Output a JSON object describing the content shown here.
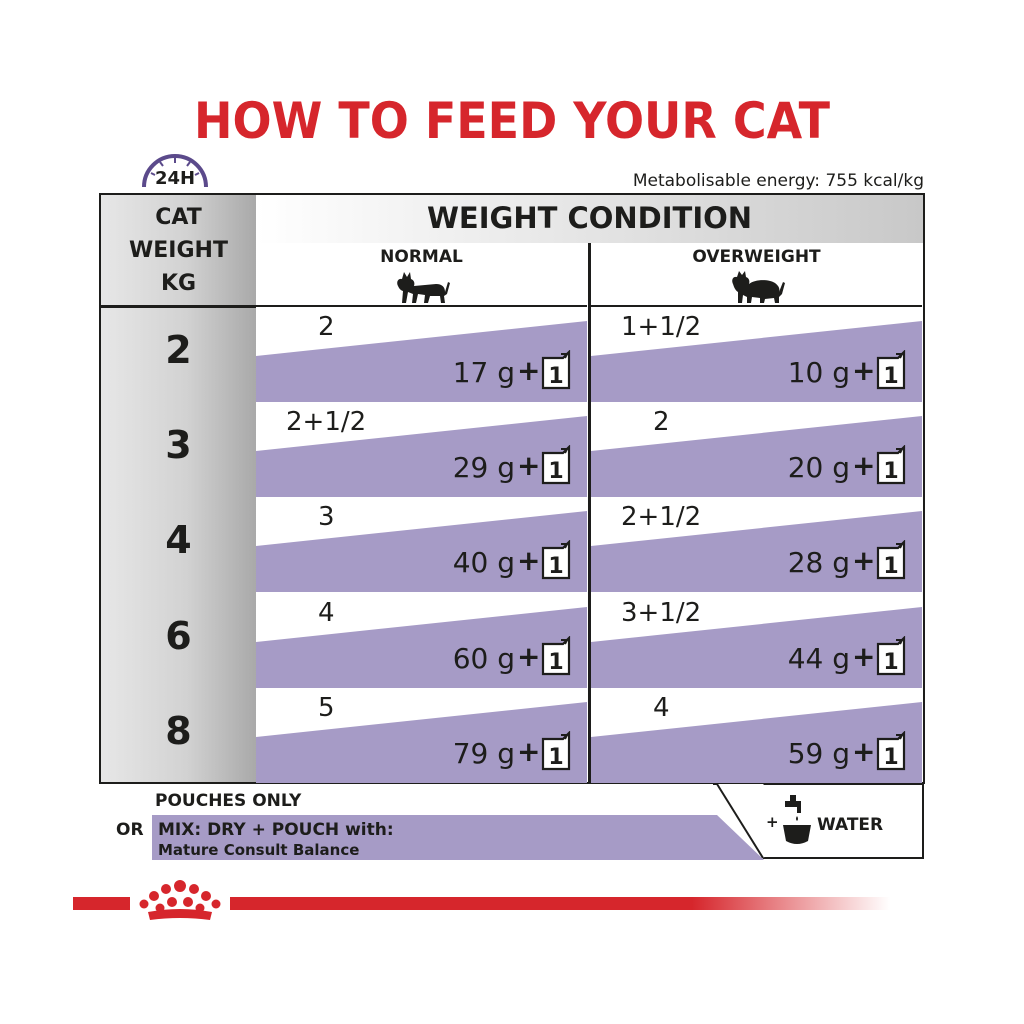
{
  "title": "HOW TO FEED YOUR CAT",
  "clock_label": "24H",
  "energy": "Metabolisable energy: 755 kcal/kg",
  "weight_header": [
    "CAT",
    "WEIGHT",
    "KG"
  ],
  "condition_title": "WEIGHT CONDITION",
  "columns": [
    {
      "label": "NORMAL",
      "icon": "cat-standing-icon"
    },
    {
      "label": "OVERWEIGHT",
      "icon": "cat-overweight-icon"
    }
  ],
  "rows": [
    {
      "kg": "2",
      "normal": {
        "pouches": "2",
        "grams": "17 g"
      },
      "overweight": {
        "pouches": "1+1/2",
        "grams": "10 g"
      }
    },
    {
      "kg": "3",
      "normal": {
        "pouches": "2+1/2",
        "grams": "29 g"
      },
      "overweight": {
        "pouches": "2",
        "grams": "20 g"
      }
    },
    {
      "kg": "4",
      "normal": {
        "pouches": "3",
        "grams": "40 g"
      },
      "overweight": {
        "pouches": "2+1/2",
        "grams": "28 g"
      }
    },
    {
      "kg": "6",
      "normal": {
        "pouches": "4",
        "grams": "60 g"
      },
      "overweight": {
        "pouches": "3+1/2",
        "grams": "44 g"
      }
    },
    {
      "kg": "8",
      "normal": {
        "pouches": "5",
        "grams": "79 g"
      },
      "overweight": {
        "pouches": "4",
        "grams": "59 g"
      }
    }
  ],
  "plus_label": "+",
  "pouch_number": "1",
  "footer": {
    "pouches_only": "POUCHES ONLY",
    "or": "OR",
    "mix": "MIX: DRY + POUCH with:",
    "mix_product": "Mature Consult Balance",
    "water_plus": "+",
    "water": "WATER"
  },
  "colors": {
    "accent_red": "#d6262c",
    "purple": "#a69bc6",
    "purple_dark": "#5b4a8b"
  }
}
